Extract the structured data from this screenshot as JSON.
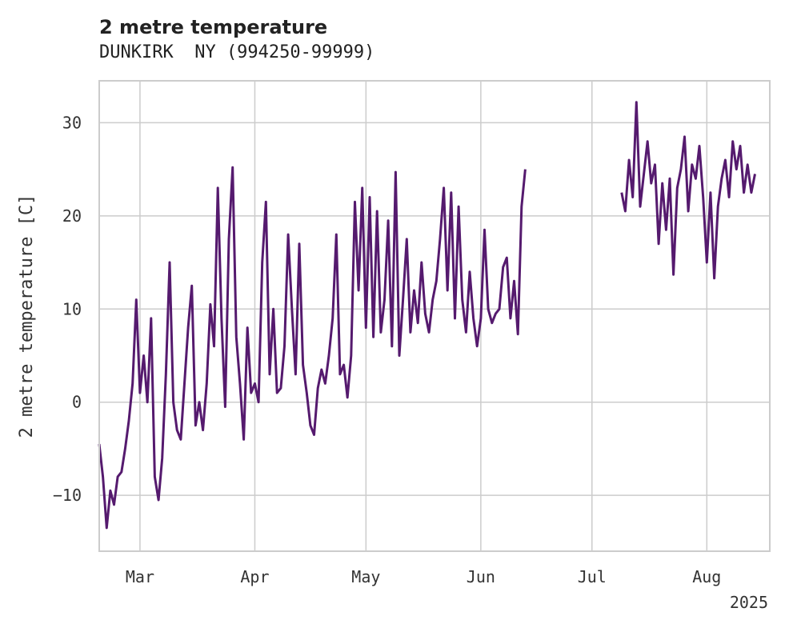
{
  "chart_data": {
    "type": "line",
    "title": "2 metre temperature",
    "subtitle": "DUNKIRK  NY (994250-99999)",
    "ylabel": "2 metre temperature [C]",
    "xlabel": "",
    "year_label": "2025",
    "ylim": [
      -16,
      34.5
    ],
    "xlim": [
      "2025-02-18",
      "2025-08-18"
    ],
    "grid": true,
    "y_ticks": [
      {
        "value": -10,
        "label": "−10"
      },
      {
        "value": 0,
        "label": "0"
      },
      {
        "value": 10,
        "label": "10"
      },
      {
        "value": 20,
        "label": "20"
      },
      {
        "value": 30,
        "label": "30"
      }
    ],
    "x_ticks": [
      {
        "value": "2025-03-01",
        "label": "Mar"
      },
      {
        "value": "2025-04-01",
        "label": "Apr"
      },
      {
        "value": "2025-05-01",
        "label": "May"
      },
      {
        "value": "2025-06-01",
        "label": "Jun"
      },
      {
        "value": "2025-07-01",
        "label": "Jul"
      },
      {
        "value": "2025-08-01",
        "label": "Aug"
      }
    ],
    "series": [
      {
        "color": "#551a6e",
        "segments": [
          [
            [
              "2025-02-18",
              -4.5
            ],
            [
              "2025-02-19",
              -8
            ],
            [
              "2025-02-20",
              -13.5
            ],
            [
              "2025-02-21",
              -9.5
            ],
            [
              "2025-02-22",
              -11
            ],
            [
              "2025-02-23",
              -8
            ],
            [
              "2025-02-24",
              -7.5
            ],
            [
              "2025-02-25",
              -5
            ],
            [
              "2025-02-26",
              -2
            ],
            [
              "2025-02-27",
              2
            ],
            [
              "2025-02-28",
              11
            ],
            [
              "2025-03-01",
              1
            ],
            [
              "2025-03-02",
              5
            ],
            [
              "2025-03-03",
              0
            ],
            [
              "2025-03-04",
              9
            ],
            [
              "2025-03-05",
              -8
            ],
            [
              "2025-03-06",
              -10.5
            ],
            [
              "2025-03-07",
              -6
            ],
            [
              "2025-03-08",
              3
            ],
            [
              "2025-03-09",
              15
            ],
            [
              "2025-03-10",
              0
            ],
            [
              "2025-03-11",
              -3
            ],
            [
              "2025-03-12",
              -4
            ],
            [
              "2025-03-13",
              2
            ],
            [
              "2025-03-14",
              8
            ],
            [
              "2025-03-15",
              12.5
            ],
            [
              "2025-03-16",
              -2.5
            ],
            [
              "2025-03-17",
              0
            ],
            [
              "2025-03-18",
              -3
            ],
            [
              "2025-03-19",
              2
            ],
            [
              "2025-03-20",
              10.5
            ],
            [
              "2025-03-21",
              6
            ],
            [
              "2025-03-22",
              23
            ],
            [
              "2025-03-23",
              9
            ],
            [
              "2025-03-24",
              -0.5
            ],
            [
              "2025-03-25",
              17.5
            ],
            [
              "2025-03-26",
              25.2
            ],
            [
              "2025-03-27",
              7
            ],
            [
              "2025-03-28",
              2
            ],
            [
              "2025-03-29",
              -4
            ],
            [
              "2025-03-30",
              8
            ],
            [
              "2025-03-31",
              1
            ],
            [
              "2025-04-01",
              2
            ],
            [
              "2025-04-02",
              0
            ],
            [
              "2025-04-03",
              15
            ],
            [
              "2025-04-04",
              21.5
            ],
            [
              "2025-04-05",
              3
            ],
            [
              "2025-04-06",
              10
            ],
            [
              "2025-04-07",
              1
            ],
            [
              "2025-04-08",
              1.5
            ],
            [
              "2025-04-09",
              6
            ],
            [
              "2025-04-10",
              18
            ],
            [
              "2025-04-11",
              10
            ],
            [
              "2025-04-12",
              3
            ],
            [
              "2025-04-13",
              17
            ],
            [
              "2025-04-14",
              4
            ],
            [
              "2025-04-15",
              1
            ],
            [
              "2025-04-16",
              -2.5
            ],
            [
              "2025-04-17",
              -3.5
            ],
            [
              "2025-04-18",
              1.5
            ],
            [
              "2025-04-19",
              3.5
            ],
            [
              "2025-04-20",
              2
            ],
            [
              "2025-04-21",
              5
            ],
            [
              "2025-04-22",
              9
            ],
            [
              "2025-04-23",
              18
            ],
            [
              "2025-04-24",
              3
            ],
            [
              "2025-04-25",
              4
            ],
            [
              "2025-04-26",
              0.5
            ],
            [
              "2025-04-27",
              5
            ],
            [
              "2025-04-28",
              21.5
            ],
            [
              "2025-04-29",
              12
            ],
            [
              "2025-04-30",
              23
            ],
            [
              "2025-05-01",
              8
            ],
            [
              "2025-05-02",
              22
            ],
            [
              "2025-05-03",
              7
            ],
            [
              "2025-05-04",
              20.5
            ],
            [
              "2025-05-05",
              7.5
            ],
            [
              "2025-05-06",
              11
            ],
            [
              "2025-05-07",
              19.5
            ],
            [
              "2025-05-08",
              6
            ],
            [
              "2025-05-09",
              24.7
            ],
            [
              "2025-05-10",
              5
            ],
            [
              "2025-05-11",
              11
            ],
            [
              "2025-05-12",
              17.5
            ],
            [
              "2025-05-13",
              7.5
            ],
            [
              "2025-05-14",
              12
            ],
            [
              "2025-05-15",
              8.5
            ],
            [
              "2025-05-16",
              15
            ],
            [
              "2025-05-17",
              9.5
            ],
            [
              "2025-05-18",
              7.5
            ],
            [
              "2025-05-19",
              11
            ],
            [
              "2025-05-20",
              13
            ],
            [
              "2025-05-21",
              17.5
            ],
            [
              "2025-05-22",
              23
            ],
            [
              "2025-05-23",
              12
            ],
            [
              "2025-05-24",
              22.5
            ],
            [
              "2025-05-25",
              9
            ],
            [
              "2025-05-26",
              21
            ],
            [
              "2025-05-27",
              11
            ],
            [
              "2025-05-28",
              7.5
            ],
            [
              "2025-05-29",
              14
            ],
            [
              "2025-05-30",
              9
            ],
            [
              "2025-05-31",
              6
            ],
            [
              "2025-06-01",
              9
            ],
            [
              "2025-06-02",
              18.5
            ],
            [
              "2025-06-03",
              10
            ],
            [
              "2025-06-04",
              8.5
            ],
            [
              "2025-06-05",
              9.5
            ],
            [
              "2025-06-06",
              10
            ],
            [
              "2025-06-07",
              14.5
            ],
            [
              "2025-06-08",
              15.5
            ],
            [
              "2025-06-09",
              9
            ],
            [
              "2025-06-10",
              13
            ],
            [
              "2025-06-11",
              7.3
            ],
            [
              "2025-06-12",
              21
            ],
            [
              "2025-06-13",
              25
            ]
          ],
          [
            [
              "2025-07-09",
              22.5
            ],
            [
              "2025-07-10",
              20.5
            ],
            [
              "2025-07-11",
              26
            ],
            [
              "2025-07-12",
              22
            ],
            [
              "2025-07-13",
              32.2
            ],
            [
              "2025-07-14",
              21
            ],
            [
              "2025-07-15",
              24.5
            ],
            [
              "2025-07-16",
              28
            ],
            [
              "2025-07-17",
              23.5
            ],
            [
              "2025-07-18",
              25.5
            ],
            [
              "2025-07-19",
              17
            ],
            [
              "2025-07-20",
              23.5
            ],
            [
              "2025-07-21",
              18.5
            ],
            [
              "2025-07-22",
              24
            ],
            [
              "2025-07-23",
              13.7
            ],
            [
              "2025-07-24",
              23
            ],
            [
              "2025-07-25",
              25
            ],
            [
              "2025-07-26",
              28.5
            ],
            [
              "2025-07-27",
              20.5
            ],
            [
              "2025-07-28",
              25.5
            ],
            [
              "2025-07-29",
              24
            ],
            [
              "2025-07-30",
              27.5
            ],
            [
              "2025-07-31",
              22
            ],
            [
              "2025-08-01",
              15
            ],
            [
              "2025-08-02",
              22.5
            ],
            [
              "2025-08-03",
              13.3
            ],
            [
              "2025-08-04",
              21
            ],
            [
              "2025-08-05",
              24
            ],
            [
              "2025-08-06",
              26
            ],
            [
              "2025-08-07",
              22
            ],
            [
              "2025-08-08",
              28
            ],
            [
              "2025-08-09",
              25
            ],
            [
              "2025-08-10",
              27.5
            ],
            [
              "2025-08-11",
              22.5
            ],
            [
              "2025-08-12",
              25.5
            ],
            [
              "2025-08-13",
              22.5
            ],
            [
              "2025-08-14",
              24.5
            ]
          ]
        ]
      }
    ],
    "colors": {
      "line": "#551a6e",
      "grid": "#cccccc",
      "axes": "#cccccc",
      "text": "#222222"
    }
  }
}
